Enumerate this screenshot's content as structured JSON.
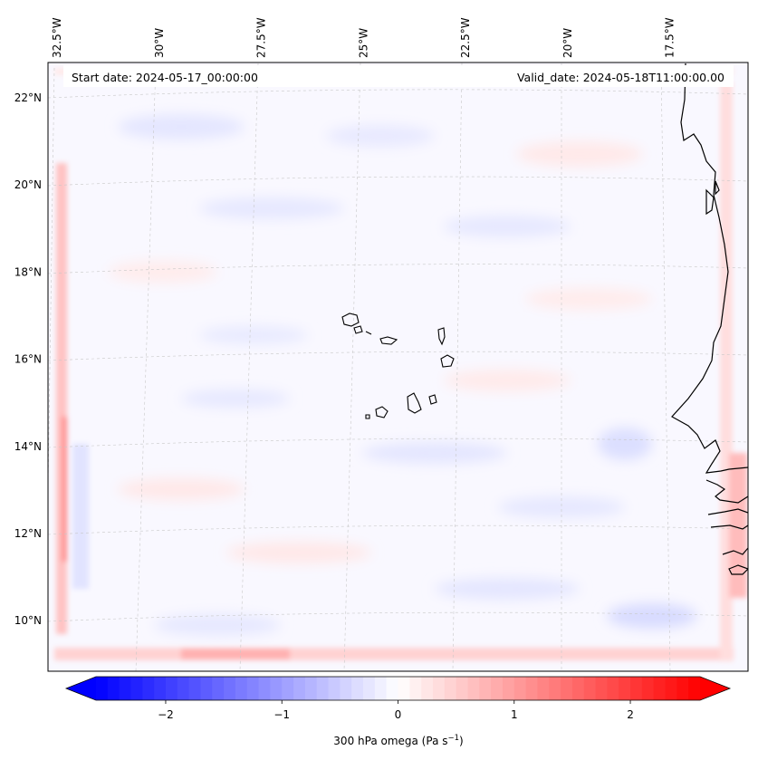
{
  "header": {
    "start_date": "Start date: 2024-05-17_00:00:00",
    "valid_date": "Valid_date: 2024-05-18T11:00:00.00"
  },
  "map": {
    "lon_labels": [
      {
        "lon": -32.5,
        "label": "32.5°W"
      },
      {
        "lon": -30.0,
        "label": "30°W"
      },
      {
        "lon": -27.5,
        "label": "27.5°W"
      },
      {
        "lon": -25.0,
        "label": "25°W"
      },
      {
        "lon": -22.5,
        "label": "22.5°W"
      },
      {
        "lon": -20.0,
        "label": "20°W"
      },
      {
        "lon": -17.5,
        "label": "17.5°W"
      }
    ],
    "lat_labels": [
      {
        "lat": 22,
        "label": "22°N"
      },
      {
        "lat": 20,
        "label": "20°N"
      },
      {
        "lat": 18,
        "label": "18°N"
      },
      {
        "lat": 16,
        "label": "16°N"
      },
      {
        "lat": 14,
        "label": "14°N"
      },
      {
        "lat": 12,
        "label": "12°N"
      },
      {
        "lat": 10,
        "label": "10°N"
      }
    ],
    "gridlines": true,
    "colors": {
      "negative": "#0000ff",
      "zero": "#ffffff",
      "positive": "#ff0000",
      "coast": "#000000"
    }
  },
  "colorbar": {
    "label_prefix": "300 hPa omega (Pa s",
    "label_exp": "−1",
    "label_suffix": ")",
    "range": [
      -2.6,
      2.6
    ],
    "ticks": [
      {
        "value": -2,
        "label": "−2"
      },
      {
        "value": -1,
        "label": "−1"
      },
      {
        "value": 0,
        "label": "0"
      },
      {
        "value": 1,
        "label": "1"
      },
      {
        "value": 2,
        "label": "2"
      }
    ],
    "extend": "both"
  }
}
